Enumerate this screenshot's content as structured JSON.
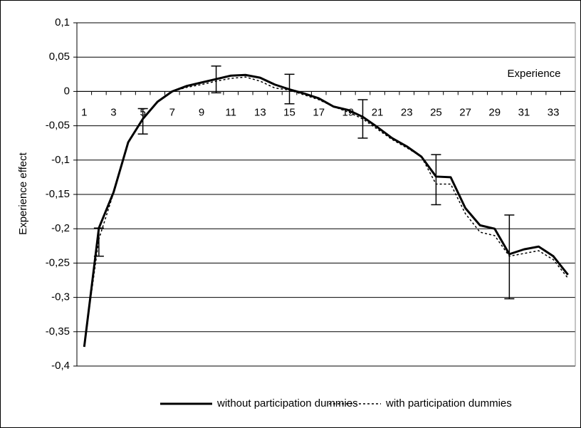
{
  "chart_data": {
    "type": "line",
    "x_label": "Experience",
    "y_label": "Experience effect",
    "categories": [
      1,
      null,
      3,
      null,
      5,
      null,
      7,
      null,
      9,
      null,
      11,
      null,
      13,
      null,
      15,
      null,
      17,
      null,
      19,
      null,
      21,
      null,
      23,
      null,
      25,
      null,
      27,
      null,
      29,
      null,
      31,
      null,
      33,
      null
    ],
    "series": [
      {
        "name": "without participation dummies",
        "color": "#000000",
        "style": "solid",
        "values": [
          -0.372,
          -0.199,
          -0.147,
          -0.074,
          -0.04,
          -0.015,
          0.0,
          0.008,
          0.013,
          0.018,
          0.023,
          0.024,
          0.02,
          0.01,
          0.003,
          -0.003,
          -0.01,
          -0.022,
          -0.027,
          -0.037,
          -0.052,
          -0.068,
          -0.08,
          -0.095,
          -0.124,
          -0.125,
          -0.17,
          -0.195,
          -0.2,
          -0.237,
          -0.23,
          -0.226,
          -0.24,
          -0.267
        ]
      },
      {
        "name": "with participation dummies",
        "color": "#000000",
        "style": "dashed",
        "values": [
          -0.37,
          -0.215,
          -0.148,
          -0.075,
          -0.04,
          -0.015,
          0.0,
          0.006,
          0.01,
          0.015,
          0.019,
          0.021,
          0.015,
          0.005,
          0.002,
          -0.005,
          -0.012,
          -0.022,
          -0.03,
          -0.04,
          -0.055,
          -0.07,
          -0.082,
          -0.095,
          -0.135,
          -0.135,
          -0.178,
          -0.205,
          -0.21,
          -0.24,
          -0.236,
          -0.232,
          -0.245,
          -0.272
        ]
      }
    ],
    "error_bars": [
      {
        "x": 2,
        "low": -0.24,
        "high": -0.199
      },
      {
        "x": 5,
        "low": -0.062,
        "high": -0.025
      },
      {
        "x": 10,
        "low": -0.002,
        "high": 0.037
      },
      {
        "x": 15,
        "low": -0.018,
        "high": 0.025
      },
      {
        "x": 20,
        "low": -0.068,
        "high": -0.012
      },
      {
        "x": 25,
        "low": -0.165,
        "high": -0.092
      },
      {
        "x": 30,
        "low": -0.302,
        "high": -0.18
      }
    ],
    "ylim": [
      -0.4,
      0.1
    ],
    "yticks": [
      {
        "value": -0.4,
        "label": "-0,4"
      },
      {
        "value": -0.35,
        "label": "-0,35"
      },
      {
        "value": -0.3,
        "label": "-0,3"
      },
      {
        "value": -0.25,
        "label": "-0,25"
      },
      {
        "value": -0.2,
        "label": "-0,2"
      },
      {
        "value": -0.15,
        "label": "-0,15"
      },
      {
        "value": -0.1,
        "label": "-0,1"
      },
      {
        "value": -0.05,
        "label": "-0,05"
      },
      0,
      {
        "value": 0.05,
        "label": "0,05"
      },
      {
        "value": 0.1,
        "label": "0,1"
      }
    ],
    "grid": true,
    "legend": "bottom"
  }
}
